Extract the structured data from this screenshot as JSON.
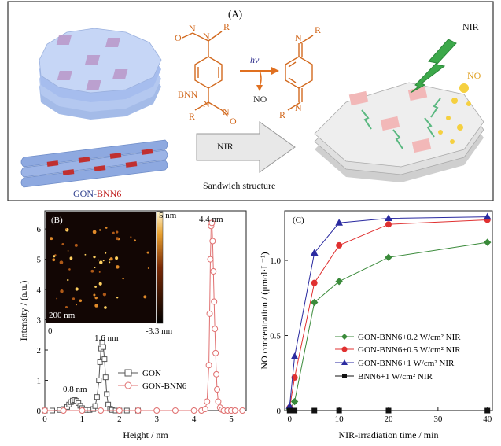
{
  "panel_a": {
    "label": "(A)",
    "nir_top": "NIR",
    "no_label": "NO",
    "hv": "hv",
    "no_product": "NO",
    "bnn": "BNN",
    "arrow_nir": "NIR",
    "sandwich": "Sandwich structure",
    "gon_part": "GON-",
    "bnn6_part": "BNN6",
    "r": "R",
    "n": "N",
    "o": "O"
  },
  "panel_b": {
    "label": "(B)",
    "inset_scale": "200 nm",
    "colorbar_top": "5 nm",
    "colorbar_bottom": "-3.3 nm",
    "inset_left_tick": "0",
    "peak_labels": [
      "0.8 nm",
      "1.6 nm",
      "4.4 nm"
    ],
    "legend": [
      "GON",
      "GON-BNN6"
    ]
  },
  "panel_c": {
    "label": "(C)"
  },
  "chart_data": [
    {
      "type": "line",
      "id": "B",
      "xlabel": "Height / nm",
      "ylabel": "Intensity / (a.u.)",
      "xlim": [
        0,
        5.4
      ],
      "ylim": [
        0,
        6.6
      ],
      "xticks": [
        0,
        1,
        2,
        3,
        4,
        5
      ],
      "yticks": [
        0,
        1,
        2,
        3,
        4,
        5,
        6
      ],
      "series": [
        {
          "name": "GON",
          "color": "#555555",
          "marker": "square",
          "x": [
            0.0,
            0.2,
            0.4,
            0.5,
            0.6,
            0.65,
            0.7,
            0.75,
            0.8,
            0.85,
            0.9,
            0.95,
            1.0,
            1.05,
            1.1,
            1.2,
            1.3,
            1.35,
            1.4,
            1.45,
            1.48,
            1.51,
            1.54,
            1.57,
            1.6,
            1.63,
            1.66,
            1.7,
            1.75,
            1.8,
            1.9,
            2.0,
            2.2,
            2.5
          ],
          "y": [
            0,
            0,
            0.02,
            0.05,
            0.12,
            0.2,
            0.28,
            0.33,
            0.35,
            0.32,
            0.25,
            0.16,
            0.08,
            0.04,
            0.02,
            0.02,
            0.05,
            0.15,
            0.45,
            1.0,
            1.6,
            2.05,
            2.25,
            2.1,
            1.7,
            1.1,
            0.55,
            0.2,
            0.06,
            0.02,
            0,
            0,
            0,
            0
          ]
        },
        {
          "name": "GON-BNN6",
          "color": "#e07070",
          "marker": "circle",
          "x": [
            0.0,
            0.5,
            1.0,
            1.5,
            2.0,
            2.5,
            3.0,
            3.5,
            4.0,
            4.2,
            4.3,
            4.35,
            4.4,
            4.42,
            4.44,
            4.46,
            4.48,
            4.5,
            4.52,
            4.54,
            4.56,
            4.58,
            4.6,
            4.62,
            4.65,
            4.7,
            4.75,
            4.8,
            4.9,
            5.0,
            5.1,
            5.3
          ],
          "y": [
            0,
            0,
            0,
            0,
            0,
            0,
            0,
            0,
            0,
            0,
            0.05,
            0.3,
            1.5,
            3.2,
            5.0,
            6.1,
            6.2,
            5.6,
            4.6,
            3.6,
            2.7,
            1.9,
            1.2,
            0.7,
            0.3,
            0.1,
            0.03,
            0,
            0,
            0,
            0,
            0
          ]
        }
      ]
    },
    {
      "type": "line",
      "id": "C",
      "xlabel": "NIR-irradiation time / min",
      "ylabel": "NO concentration / (μmol·L⁻¹)",
      "xlim": [
        -1,
        41
      ],
      "ylim": [
        0,
        1.33
      ],
      "xticks": [
        0,
        10,
        20,
        30,
        40
      ],
      "yticks": [
        0,
        0.5,
        1.0
      ],
      "series": [
        {
          "name": "GON-BNN6+0.2 W/cm² NIR",
          "color": "#3a8a3a",
          "marker": "diamond",
          "x": [
            0,
            1,
            5,
            10,
            20,
            40
          ],
          "y": [
            0.01,
            0.06,
            0.72,
            0.86,
            1.02,
            1.12
          ]
        },
        {
          "name": "GON-BNN6+0.5 W/cm² NIR",
          "color": "#e03030",
          "marker": "circle",
          "x": [
            0,
            1,
            5,
            10,
            20,
            40
          ],
          "y": [
            0.02,
            0.22,
            0.85,
            1.1,
            1.24,
            1.27
          ]
        },
        {
          "name": "GON-BNN6+1 W/cm² NIR",
          "color": "#2a2aa0",
          "marker": "triangle",
          "x": [
            0,
            1,
            5,
            10,
            20,
            40
          ],
          "y": [
            0.03,
            0.36,
            1.05,
            1.25,
            1.28,
            1.29
          ]
        },
        {
          "name": "BNN6+1 W/cm² NIR",
          "color": "#111111",
          "marker": "square",
          "x": [
            0,
            1,
            5,
            10,
            20,
            40
          ],
          "y": [
            0,
            0,
            0,
            0,
            0,
            0
          ]
        }
      ]
    }
  ]
}
